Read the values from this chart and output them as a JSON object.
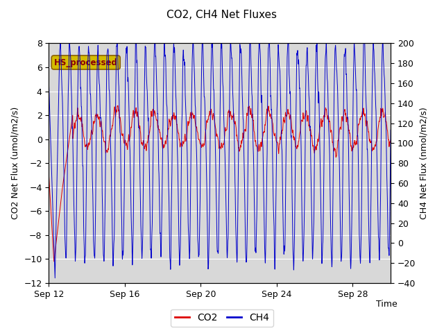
{
  "title": "CO2, CH4 Net Fluxes",
  "xlabel": "Time",
  "ylabel_left": "CO2 Net Flux (umol/m2/s)",
  "ylabel_right": "CH4 Net Flux (nmol/m2/s)",
  "ylim_left": [
    -12,
    8
  ],
  "ylim_right": [
    -40,
    200
  ],
  "yticks_left": [
    -12,
    -10,
    -8,
    -6,
    -4,
    -2,
    0,
    2,
    4,
    6,
    8
  ],
  "yticks_right": [
    -40,
    -20,
    0,
    20,
    40,
    60,
    80,
    100,
    120,
    140,
    160,
    180,
    200
  ],
  "xtick_positions": [
    0,
    4,
    8,
    12,
    16
  ],
  "xtick_labels": [
    "Sep 12",
    "Sep 16",
    "Sep 20",
    "Sep 24",
    "Sep 28"
  ],
  "annotation_text": "HS_processed",
  "annotation_bg": "#d4bc00",
  "annotation_fg": "#8b0000",
  "co2_color": "#dd0000",
  "ch4_color": "#0000cc",
  "legend_co2": "CO2",
  "legend_ch4": "CH4",
  "plot_bg": "#d8d8d8",
  "fig_bg": "#ffffff",
  "xlim": [
    0,
    18
  ],
  "seed": 42
}
